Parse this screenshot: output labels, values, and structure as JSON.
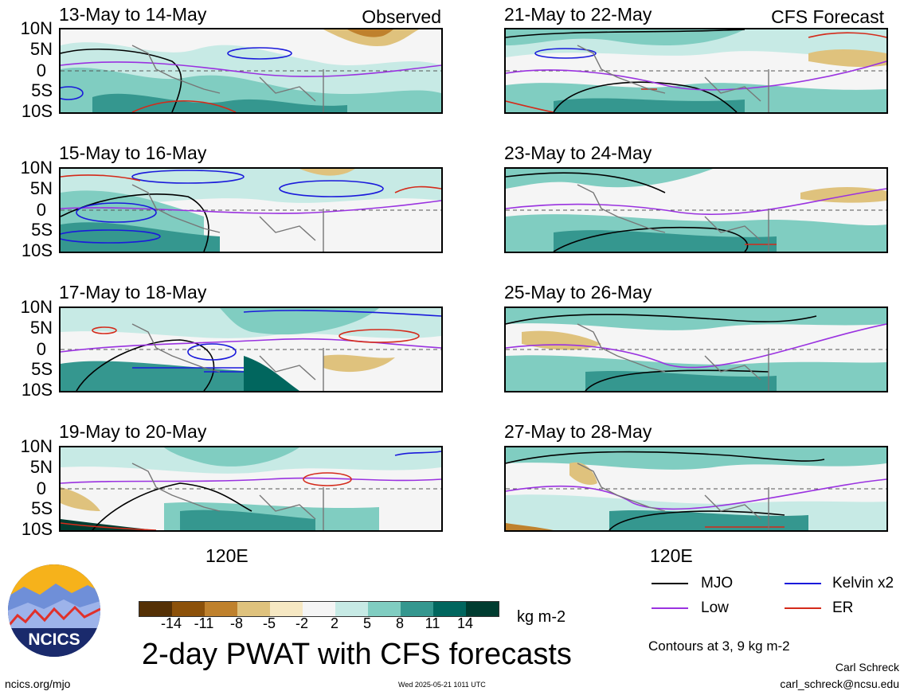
{
  "observed_label": "Observed",
  "forecast_label": "CFS Forecast",
  "lat_labels": [
    "10N",
    "5N",
    "0",
    "5S",
    "10S"
  ],
  "lon_label": "120E",
  "panels": [
    {
      "title": "13-May to 14-May"
    },
    {
      "title": "15-May to 16-May"
    },
    {
      "title": "17-May to 18-May"
    },
    {
      "title": "19-May to 20-May"
    },
    {
      "title": "21-May to 22-May"
    },
    {
      "title": "23-May to 24-May"
    },
    {
      "title": "25-May to 26-May"
    },
    {
      "title": "27-May to 28-May"
    }
  ],
  "colorbar": {
    "ticks": [
      "-14",
      "-11",
      "-8",
      "-5",
      "-2",
      "2",
      "5",
      "8",
      "11",
      "14"
    ],
    "colors": [
      "#543005",
      "#8c510a",
      "#bf812d",
      "#dfc27d",
      "#f6e8c3",
      "#f5f5f5",
      "#c7eae5",
      "#80cdc1",
      "#35978f",
      "#01665e",
      "#003c30"
    ],
    "units": "kg m-2"
  },
  "legend": {
    "items": [
      {
        "label": "MJO",
        "color": "#000000"
      },
      {
        "label": "Kelvin x2",
        "color": "#1a1adb"
      },
      {
        "label": "Low",
        "color": "#9a32e0"
      },
      {
        "label": "ER",
        "color": "#d42a1a"
      }
    ],
    "contours_note": "Contours at 3, 9 kg m-2"
  },
  "title": "2-day PWAT with CFS forecasts",
  "logo_text": "NCICS",
  "footer": {
    "url": "ncics.org/mjo",
    "timestamp": "Wed 2025-05-21 1011 UTC",
    "author": "Carl Schreck",
    "email": "carl_schreck@ncsu.edu"
  }
}
